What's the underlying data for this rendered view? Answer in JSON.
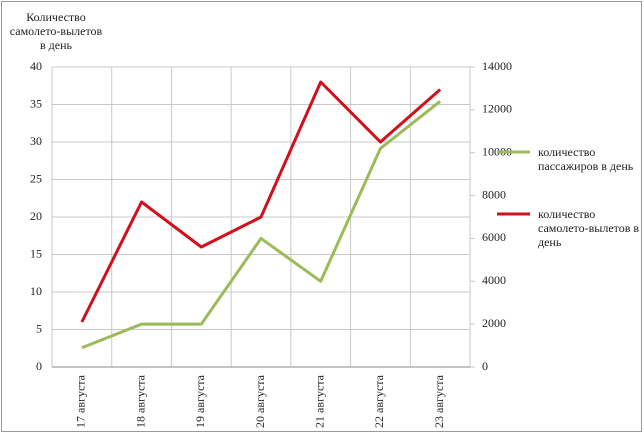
{
  "chart_data": {
    "type": "line",
    "y_label": "Количество самолето-вылетов в день",
    "categories": [
      "17 августа",
      "18 августа",
      "19 августа",
      "20 августа",
      "21 августа",
      "22 августа",
      "23 августа"
    ],
    "series": [
      {
        "name": "количество пассажиров в день",
        "color": "#9bbb59",
        "axis": "y2",
        "values": [
          900,
          2000,
          2000,
          6000,
          4000,
          10200,
          12400
        ]
      },
      {
        "name": "количество самолето-вылетов в день",
        "color": "#d0101c",
        "values": [
          6,
          22,
          16,
          20,
          38,
          30,
          37
        ]
      }
    ],
    "ylim": [
      0,
      40
    ],
    "yticks": [
      0,
      5,
      10,
      15,
      20,
      25,
      30,
      35,
      40
    ],
    "y2lim": [
      0,
      14000
    ],
    "y2ticks": [
      0,
      2000,
      4000,
      6000,
      8000,
      10000,
      12000,
      14000
    ],
    "grid": true
  }
}
